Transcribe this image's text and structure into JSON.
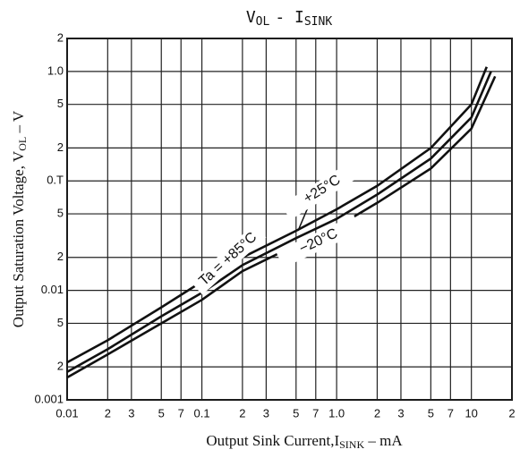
{
  "chart_data": {
    "type": "line",
    "title": [
      "V",
      "OL",
      "- I",
      "SINK"
    ],
    "x_label": [
      "Output Sink Current,I",
      "SINK",
      " – mA"
    ],
    "y_label": [
      "Output Saturation Voltage, V",
      "OL",
      " – V"
    ],
    "log_x": true,
    "log_y": true,
    "grid": true,
    "xlim": [
      0.01,
      20
    ],
    "ylim": [
      0.001,
      2
    ],
    "xticks": [
      0.01,
      {
        "value": 0.02,
        "label": "2"
      },
      {
        "value": 0.03,
        "label": "3"
      },
      {
        "value": 0.05,
        "label": "5"
      },
      {
        "value": 0.07,
        "label": "7"
      },
      0.1,
      {
        "value": 0.2,
        "label": "2"
      },
      {
        "value": 0.3,
        "label": "3"
      },
      {
        "value": 0.5,
        "label": "5"
      },
      {
        "value": 0.7,
        "label": "7"
      },
      {
        "value": 1,
        "label": "1.0"
      },
      {
        "value": 2,
        "label": "2"
      },
      {
        "value": 3,
        "label": "3"
      },
      {
        "value": 5,
        "label": "5"
      },
      {
        "value": 7,
        "label": "7"
      },
      10,
      {
        "value": 20,
        "label": "2"
      }
    ],
    "yticks": [
      0.001,
      {
        "value": 0.002,
        "label": "2"
      },
      {
        "value": 0.005,
        "label": "5"
      },
      0.01,
      {
        "value": 0.02,
        "label": "2"
      },
      {
        "value": 0.05,
        "label": "5"
      },
      {
        "value": 0.1,
        "label": "0.T"
      },
      {
        "value": 0.2,
        "label": "2"
      },
      {
        "value": 0.5,
        "label": "5"
      },
      {
        "value": 1,
        "label": "1.0"
      },
      2
    ],
    "series": [
      {
        "name": "Ta = +85°C",
        "color": "#111111",
        "x": [
          0.01,
          0.02,
          0.05,
          0.1,
          0.2,
          0.5,
          1,
          2,
          5,
          10,
          13
        ],
        "values": [
          0.0022,
          0.0035,
          0.007,
          0.012,
          0.02,
          0.035,
          0.055,
          0.09,
          0.2,
          0.5,
          1.1
        ]
      },
      {
        "name": "+25°C",
        "color": "#111111",
        "x": [
          0.01,
          0.02,
          0.05,
          0.1,
          0.2,
          0.5,
          1,
          2,
          5,
          10,
          14
        ],
        "values": [
          0.0018,
          0.0029,
          0.0058,
          0.0095,
          0.017,
          0.03,
          0.045,
          0.075,
          0.16,
          0.38,
          1.0
        ]
      },
      {
        "name": "−20°C",
        "color": "#111111",
        "x": [
          0.01,
          0.02,
          0.05,
          0.1,
          0.2,
          0.5,
          1,
          2,
          5,
          10,
          15
        ],
        "values": [
          0.0016,
          0.0026,
          0.005,
          0.0082,
          0.015,
          0.026,
          0.038,
          0.063,
          0.13,
          0.3,
          0.9
        ]
      }
    ]
  }
}
